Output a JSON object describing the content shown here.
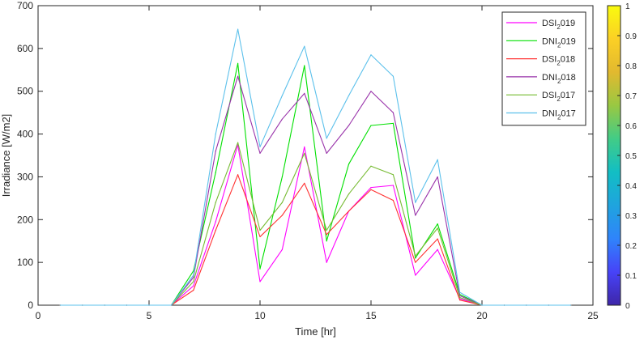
{
  "chart_data": {
    "type": "line",
    "xlabel": "Time [hr]",
    "ylabel": "Irradiance [W/m2]",
    "xlim": [
      0,
      25
    ],
    "ylim": [
      0,
      700
    ],
    "x_ticks": [
      0,
      5,
      10,
      15,
      20,
      25
    ],
    "y_ticks": [
      0,
      100,
      200,
      300,
      400,
      500,
      600,
      700
    ],
    "grid": false,
    "legend_position": "top-right",
    "x": [
      1,
      2,
      3,
      4,
      5,
      6,
      7,
      8,
      9,
      10,
      11,
      12,
      13,
      14,
      15,
      16,
      17,
      18,
      19,
      20,
      21,
      22,
      23,
      24
    ],
    "series": [
      {
        "name": "DSI_2019",
        "legend": {
          "pre": "DSI",
          "sub": "2",
          "post": "019"
        },
        "color": "#ff00ff",
        "values": [
          0,
          0,
          0,
          0,
          0,
          0,
          45,
          195,
          375,
          55,
          130,
          370,
          100,
          220,
          275,
          280,
          70,
          130,
          15,
          0,
          0,
          0,
          0,
          0
        ]
      },
      {
        "name": "DNI_2019",
        "legend": {
          "pre": "DNI",
          "sub": "2",
          "post": "019"
        },
        "color": "#00e000",
        "values": [
          0,
          0,
          0,
          0,
          0,
          0,
          80,
          310,
          565,
          85,
          300,
          560,
          150,
          330,
          420,
          425,
          110,
          190,
          25,
          0,
          0,
          0,
          0,
          0
        ]
      },
      {
        "name": "DSI_2018",
        "legend": {
          "pre": "DSI",
          "sub": "2",
          "post": "018"
        },
        "color": "#ff3333",
        "values": [
          0,
          0,
          0,
          0,
          0,
          0,
          35,
          175,
          305,
          160,
          210,
          285,
          165,
          220,
          270,
          245,
          100,
          155,
          12,
          0,
          0,
          0,
          0,
          0
        ]
      },
      {
        "name": "DNI_2018",
        "legend": {
          "pre": "DNI",
          "sub": "2",
          "post": "018"
        },
        "color": "#9933aa",
        "values": [
          0,
          0,
          0,
          0,
          0,
          0,
          65,
          360,
          535,
          355,
          435,
          495,
          355,
          420,
          500,
          450,
          210,
          300,
          22,
          0,
          0,
          0,
          0,
          0
        ]
      },
      {
        "name": "DSI_2017",
        "legend": {
          "pre": "DSI",
          "sub": "2",
          "post": "017"
        },
        "color": "#77bb33",
        "values": [
          0,
          0,
          0,
          0,
          0,
          0,
          55,
          240,
          380,
          175,
          240,
          355,
          175,
          260,
          325,
          305,
          115,
          180,
          18,
          0,
          0,
          0,
          0,
          0
        ]
      },
      {
        "name": "DNI_2017",
        "legend": {
          "pre": "DNI",
          "sub": "2",
          "post": "017"
        },
        "color": "#5bc0eb",
        "values": [
          0,
          0,
          0,
          0,
          0,
          0,
          70,
          400,
          645,
          370,
          490,
          605,
          390,
          490,
          585,
          535,
          240,
          340,
          30,
          0,
          0,
          0,
          0,
          0
        ]
      }
    ],
    "colorbar": {
      "min": 0,
      "max": 1,
      "ticks": [
        "0",
        "0.1",
        "0.2",
        "0.3",
        "0.4",
        "0.5",
        "0.6",
        "0.7",
        "0.8",
        "0.9",
        "1"
      ],
      "colormap": [
        "#3e26a8",
        "#4743f8",
        "#2f84fb",
        "#1fa4de",
        "#12bec4",
        "#42cc86",
        "#99c842",
        "#e2b92f",
        "#fbd025",
        "#f9fb0e"
      ]
    }
  }
}
